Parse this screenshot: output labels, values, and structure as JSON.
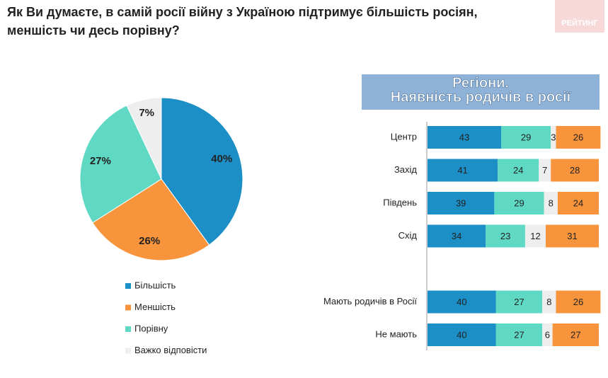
{
  "title": "Як Ви думаєте, в самій росії війну з Україною підтримує більшість росіян, меншість чи десь порівну?",
  "logo": "РЕЙТИНГ",
  "chart_data": [
    {
      "type": "pie",
      "categories": [
        "Більшість",
        "Меншість",
        "Порівну",
        "Важко відповісти"
      ],
      "values": [
        40,
        26,
        27,
        7
      ],
      "value_labels": [
        "40%",
        "26%",
        "27%",
        "7%"
      ],
      "colors": [
        "#1b8fc6",
        "#f7943c",
        "#5fd8c4",
        "#eeeeee"
      ]
    },
    {
      "type": "stacked-bar-horizontal",
      "title": [
        "Регіони.",
        "Наявність родичів в росії"
      ],
      "categories": [
        "Центр",
        "Захід",
        "Південь",
        "Схід",
        null,
        "Мають родичів в Росії",
        "Не мають"
      ],
      "series": [
        {
          "color": "#1b8fc6",
          "values": [
            43,
            41,
            39,
            34,
            null,
            40,
            40
          ]
        },
        {
          "color": "#5fd8c4",
          "values": [
            29,
            24,
            29,
            23,
            null,
            27,
            27
          ]
        },
        {
          "color": "#eeeeee",
          "values": [
            3,
            7,
            8,
            12,
            null,
            8,
            6
          ]
        },
        {
          "color": "#f7943c",
          "values": [
            26,
            28,
            24,
            31,
            null,
            26,
            27
          ]
        }
      ]
    }
  ]
}
